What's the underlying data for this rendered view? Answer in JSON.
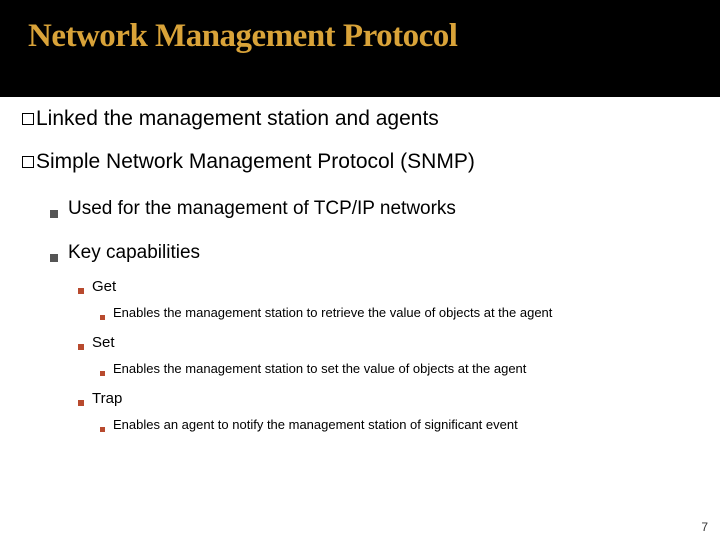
{
  "title": {
    "text": "Network Management Protocol",
    "color": "#d9a339",
    "fontsize": 33
  },
  "bulletColors": {
    "lvl3": "#b84a2e",
    "lvl4": "#b84a2e"
  },
  "items": [
    {
      "prefix": "Linked",
      "rest": " the management station and agents"
    },
    {
      "prefix": "Simple",
      "rest": " Network Management Protocol (SNMP)",
      "sub": [
        {
          "text": "Used for the management of TCP/IP networks"
        },
        {
          "text": "Key capabilities",
          "sub": [
            {
              "text": "Get",
              "sub": [
                {
                  "text": "Enables the management station to retrieve the value of objects at the agent"
                }
              ]
            },
            {
              "text": "Set",
              "sub": [
                {
                  "text": "Enables the management station to set the value of objects at the agent"
                }
              ]
            },
            {
              "text": "Trap",
              "sub": [
                {
                  "text": "Enables an agent to notify the management station of significant event"
                }
              ]
            }
          ]
        }
      ]
    }
  ],
  "pageNumber": "7"
}
